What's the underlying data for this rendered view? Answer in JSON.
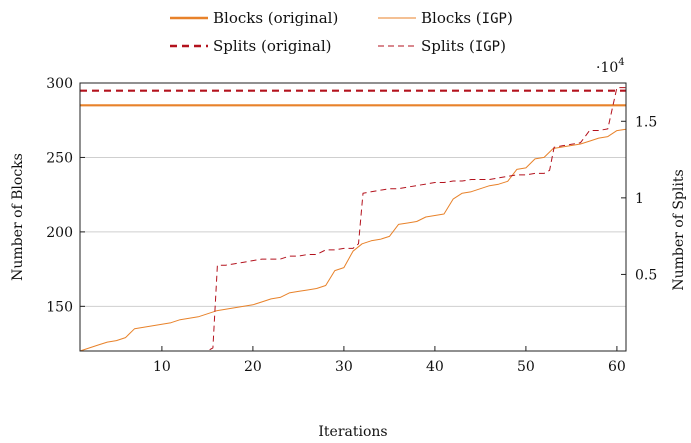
{
  "chart_data": {
    "type": "line",
    "xlabel": "Iterations",
    "ylabel_left": "Number of Blocks",
    "ylabel_right": "Number of Splits",
    "right_axis_multiplier": "·10",
    "right_axis_exponent": "4",
    "xlim": [
      1,
      61
    ],
    "ylim_left": [
      120,
      300
    ],
    "ylim_right": [
      0,
      1.75
    ],
    "x_ticks": [
      10,
      20,
      30,
      40,
      50,
      60
    ],
    "y_ticks_left": [
      150,
      200,
      250,
      300
    ],
    "y_ticks_right": [
      0.5,
      1,
      1.5
    ],
    "grid": "horizontal",
    "legend_position": "top",
    "colors": {
      "blocks": "#e8822a",
      "splits": "#b3121d"
    },
    "legend": [
      {
        "label": "Blocks (original)",
        "label_main": "Blocks (",
        "label_code": "original",
        "label_end": ")",
        "style": "solid-thick",
        "color": "#e8822a"
      },
      {
        "label": "Blocks (IGP)",
        "label_main": "Blocks (",
        "label_code": "IGP",
        "label_end": ")",
        "style": "solid-thin",
        "color": "#e8822a"
      },
      {
        "label": "Splits (original)",
        "label_main": "Splits (",
        "label_code": "original",
        "label_end": ")",
        "style": "dashed-thick",
        "color": "#b3121d"
      },
      {
        "label": "Splits (IGP)",
        "label_main": "Splits (",
        "label_code": "IGP",
        "label_end": ")",
        "style": "dashed-thin",
        "color": "#b3121d"
      }
    ],
    "series": [
      {
        "name": "Blocks (original)",
        "axis": "left",
        "style": "solid-thick",
        "x": [
          1,
          61
        ],
        "y": [
          285,
          285
        ]
      },
      {
        "name": "Splits (original)",
        "axis": "right",
        "style": "dashed-thick",
        "x": [
          1,
          61
        ],
        "y": [
          1.7,
          1.7
        ]
      },
      {
        "name": "Blocks (IGP)",
        "axis": "left",
        "style": "solid-thin",
        "x": [
          1,
          2,
          3,
          4,
          5,
          6,
          7,
          8,
          9,
          10,
          11,
          12,
          13,
          14,
          15,
          16,
          17,
          18,
          19,
          20,
          21,
          22,
          23,
          24,
          25,
          26,
          27,
          28,
          29,
          30,
          31,
          32,
          33,
          34,
          35,
          36,
          37,
          38,
          39,
          40,
          41,
          42,
          43,
          44,
          45,
          46,
          47,
          48,
          49,
          50,
          51,
          52,
          53,
          54,
          55,
          56,
          57,
          58,
          59,
          60,
          61
        ],
        "y": [
          120,
          122,
          124,
          126,
          127,
          129,
          135,
          136,
          137,
          138,
          139,
          141,
          142,
          143,
          145,
          147,
          148,
          149,
          150,
          151,
          153,
          155,
          156,
          159,
          160,
          161,
          162,
          164,
          174,
          176,
          187,
          192,
          194,
          195,
          197,
          205,
          206,
          207,
          210,
          211,
          212,
          222,
          226,
          227,
          229,
          231,
          232,
          234,
          242,
          243,
          249,
          250,
          256,
          257,
          258,
          259,
          261,
          263,
          264,
          268,
          269
        ]
      },
      {
        "name": "Splits (IGP)",
        "axis": "right",
        "style": "dashed-thin",
        "x": [
          1,
          2,
          3,
          4,
          5,
          6,
          7,
          8,
          9,
          10,
          11,
          12,
          13,
          14,
          15,
          15.6,
          16.1,
          17,
          18,
          19,
          20,
          21,
          22,
          23,
          24,
          25,
          26,
          27,
          28,
          29,
          30,
          31,
          31.6,
          32.1,
          33,
          34,
          35,
          36,
          37,
          38,
          39,
          40,
          41,
          42,
          43,
          44,
          45,
          46,
          47,
          48,
          49,
          50,
          51,
          52,
          52.6,
          53.1,
          54,
          55,
          56,
          57,
          58,
          59,
          60,
          61
        ],
        "y": [
          0,
          0,
          0,
          0,
          0,
          0,
          0,
          0,
          0,
          0,
          0,
          0,
          0,
          0,
          0,
          0.02,
          0.56,
          0.56,
          0.57,
          0.58,
          0.59,
          0.6,
          0.6,
          0.6,
          0.62,
          0.62,
          0.63,
          0.63,
          0.66,
          0.66,
          0.67,
          0.67,
          0.7,
          1.03,
          1.04,
          1.05,
          1.06,
          1.06,
          1.07,
          1.08,
          1.09,
          1.1,
          1.1,
          1.11,
          1.11,
          1.12,
          1.12,
          1.12,
          1.13,
          1.14,
          1.15,
          1.15,
          1.16,
          1.16,
          1.18,
          1.33,
          1.34,
          1.35,
          1.36,
          1.44,
          1.44,
          1.45,
          1.72,
          1.72
        ]
      }
    ]
  }
}
